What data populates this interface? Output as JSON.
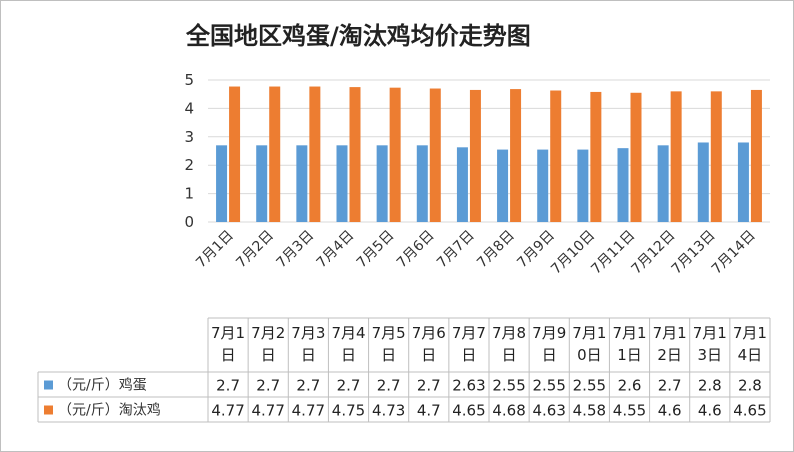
{
  "chart_data": {
    "type": "bar",
    "title": "全国地区鸡蛋/淘汰鸡均价走势图",
    "categories": [
      "7月1日",
      "7月2日",
      "7月3日",
      "7月4日",
      "7月5日",
      "7月6日",
      "7月7日",
      "7月8日",
      "7月9日",
      "7月10日",
      "7月11日",
      "7月12日",
      "7月13日",
      "7月14日"
    ],
    "category_table_lines": [
      [
        "7月1",
        "日"
      ],
      [
        "7月2",
        "日"
      ],
      [
        "7月3",
        "日"
      ],
      [
        "7月4",
        "日"
      ],
      [
        "7月5",
        "日"
      ],
      [
        "7月6",
        "日"
      ],
      [
        "7月7",
        "日"
      ],
      [
        "7月8",
        "日"
      ],
      [
        "7月9",
        "日"
      ],
      [
        "7月1",
        "0日"
      ],
      [
        "7月1",
        "1日"
      ],
      [
        "7月1",
        "2日"
      ],
      [
        "7月1",
        "3日"
      ],
      [
        "7月1",
        "4日"
      ]
    ],
    "series": [
      {
        "name": "（元/斤）鸡蛋",
        "color": "#5b9bd5",
        "values": [
          2.7,
          2.7,
          2.7,
          2.7,
          2.7,
          2.7,
          2.63,
          2.55,
          2.55,
          2.55,
          2.6,
          2.7,
          2.8,
          2.8
        ]
      },
      {
        "name": "（元/斤）淘汰鸡",
        "color": "#ed7d31",
        "values": [
          4.77,
          4.77,
          4.77,
          4.75,
          4.73,
          4.7,
          4.65,
          4.68,
          4.63,
          4.58,
          4.55,
          4.6,
          4.6,
          4.65
        ]
      }
    ],
    "ylim": [
      0,
      5
    ],
    "yticks": [
      0,
      1,
      2,
      3,
      4,
      5
    ],
    "grid": true,
    "legend": "table"
  }
}
